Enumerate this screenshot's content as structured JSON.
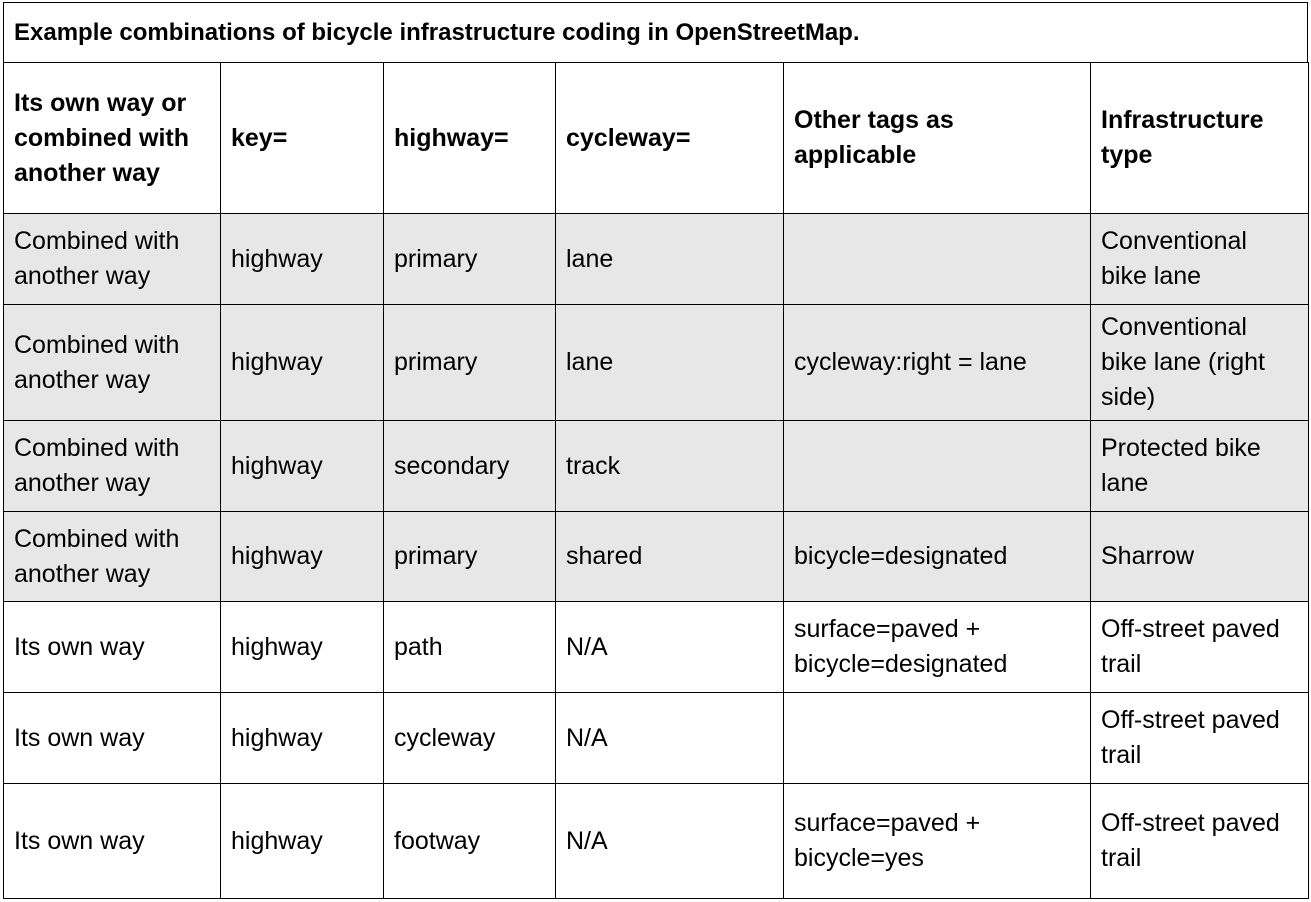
{
  "caption": "Example combinations of bicycle infrastructure coding in OpenStreetMap.",
  "headers": [
    "Its own way or combined with another way",
    "key=",
    "highway=",
    "cycleway=",
    "Other tags as applicable",
    "Infrastructure type"
  ],
  "rows": [
    {
      "shaded": true,
      "cells": [
        "Combined with another way",
        "highway",
        "primary",
        "lane",
        "",
        "Conventional bike lane"
      ]
    },
    {
      "shaded": true,
      "cells": [
        "Combined with another way",
        "highway",
        "primary",
        "lane",
        "cycleway:right = lane",
        "Conventional bike lane (right side)"
      ]
    },
    {
      "shaded": true,
      "cells": [
        "Combined with another way",
        "highway",
        "secondary",
        "track",
        "",
        "Protected bike lane"
      ]
    },
    {
      "shaded": true,
      "cells": [
        "Combined with another way",
        "highway",
        "primary",
        "shared",
        "bicycle=designated",
        "Sharrow"
      ]
    },
    {
      "shaded": false,
      "cells": [
        "Its own way",
        "highway",
        "path",
        "N/A",
        "surface=paved + bicycle=designated",
        "Off-street paved trail"
      ]
    },
    {
      "shaded": false,
      "cells": [
        "Its own way",
        "highway",
        "cycleway",
        "N/A",
        "",
        "Off-street paved trail"
      ]
    },
    {
      "shaded": false,
      "cells": [
        "Its own way",
        "highway",
        "footway",
        "N/A",
        "surface=paved + bicycle=yes",
        "Off-street paved trail"
      ]
    }
  ]
}
